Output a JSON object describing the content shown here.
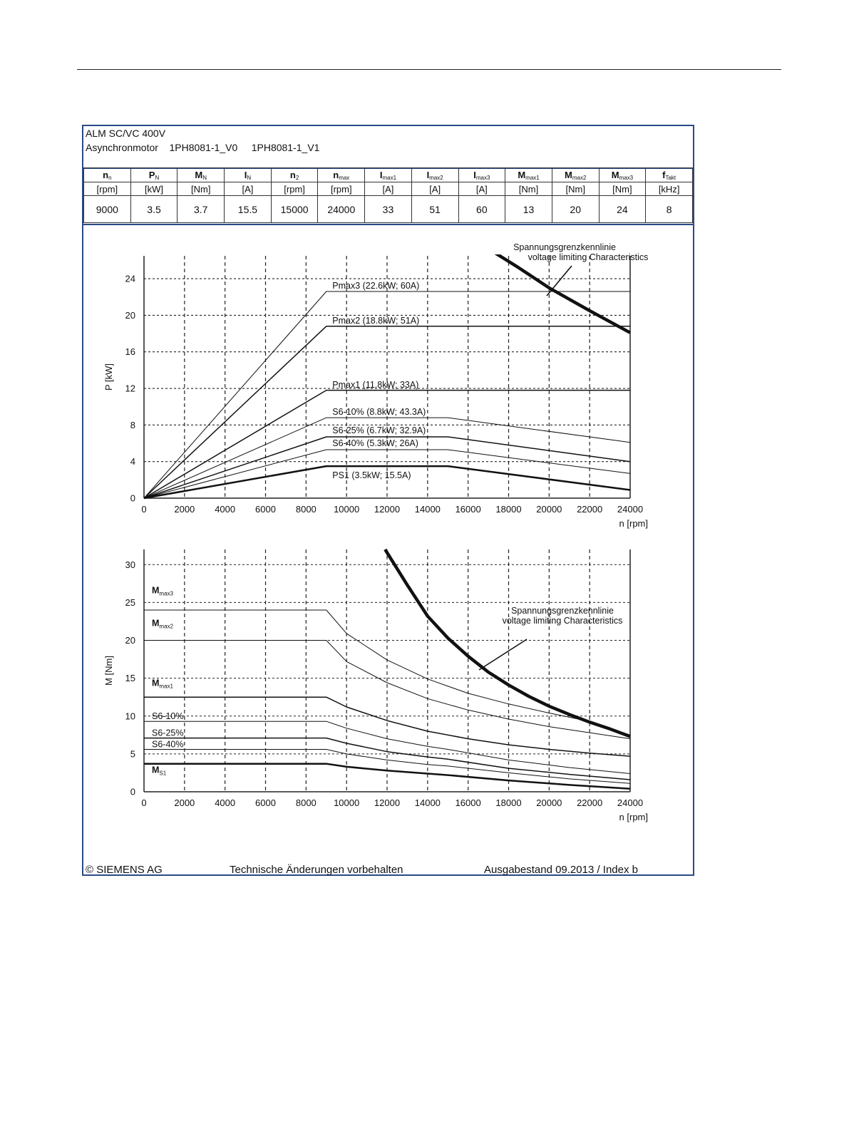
{
  "header": {
    "line1": "ALM SC/VC 400V",
    "line2_label": "Asynchronmotor",
    "line2_model1": "1PH8081-1_V0",
    "line2_model2": "1PH8081-1_V1"
  },
  "spec_table": {
    "columns": [
      {
        "sym": "n",
        "sub": "n",
        "unit": "[rpm]",
        "value": "9000"
      },
      {
        "sym": "P",
        "sub": "N",
        "unit": "[kW]",
        "value": "3.5"
      },
      {
        "sym": "M",
        "sub": "N",
        "unit": "[Nm]",
        "value": "3.7"
      },
      {
        "sym": "I",
        "sub": "N",
        "unit": "[A]",
        "value": "15.5"
      },
      {
        "sym": "n",
        "sub": "2",
        "unit": "[rpm]",
        "value": "15000"
      },
      {
        "sym": "n",
        "sub": "max",
        "unit": "[rpm]",
        "value": "24000"
      },
      {
        "sym": "I",
        "sub": "max1",
        "unit": "[A]",
        "value": "33"
      },
      {
        "sym": "I",
        "sub": "max2",
        "unit": "[A]",
        "value": "51"
      },
      {
        "sym": "I",
        "sub": "max3",
        "unit": "[A]",
        "value": "60"
      },
      {
        "sym": "M",
        "sub": "max1",
        "unit": "[Nm]",
        "value": "13"
      },
      {
        "sym": "M",
        "sub": "max2",
        "unit": "[Nm]",
        "value": "20"
      },
      {
        "sym": "M",
        "sub": "max3",
        "unit": "[Nm]",
        "value": "24"
      },
      {
        "sym": "f",
        "sub": "Takt",
        "unit": "[kHz]",
        "value": "8"
      }
    ]
  },
  "chart_data": [
    {
      "type": "line",
      "xlabel": "n [rpm]",
      "ylabel": "P [kW]",
      "xlim": [
        0,
        24000
      ],
      "ylim": [
        0,
        26.5
      ],
      "xticks": [
        0,
        2000,
        4000,
        6000,
        8000,
        10000,
        12000,
        14000,
        16000,
        18000,
        20000,
        22000,
        24000
      ],
      "yticks": [
        0,
        4,
        8,
        12,
        16,
        20,
        24
      ],
      "grid": "dashed",
      "series": [
        {
          "name": "Pmax3 (22.6kW; 60A)",
          "stroke": 1,
          "points": [
            [
              0,
              0
            ],
            [
              9000,
              22.6
            ],
            [
              24000,
              22.6
            ]
          ]
        },
        {
          "name": "Pmax2 (18.8kW; 51A)",
          "stroke": 1.5,
          "points": [
            [
              0,
              0
            ],
            [
              9000,
              18.8
            ],
            [
              24000,
              18.8
            ]
          ]
        },
        {
          "name": "Pmax1 (11.8kW; 33A)",
          "stroke": 1.5,
          "points": [
            [
              0,
              0
            ],
            [
              9000,
              11.8
            ],
            [
              24000,
              11.8
            ]
          ]
        },
        {
          "name": "S6-10% (8.8kW; 43.3A)",
          "stroke": 1,
          "points": [
            [
              0,
              0
            ],
            [
              9000,
              8.8
            ],
            [
              15000,
              8.8
            ],
            [
              24000,
              6.1
            ]
          ]
        },
        {
          "name": "S6-25% (6.7kW; 32.9A)",
          "stroke": 1.5,
          "points": [
            [
              0,
              0
            ],
            [
              9000,
              6.7
            ],
            [
              15000,
              6.7
            ],
            [
              24000,
              4.0
            ]
          ]
        },
        {
          "name": "S6-40% (5.3kW; 26A)",
          "stroke": 1,
          "points": [
            [
              0,
              0
            ],
            [
              9000,
              5.3
            ],
            [
              15000,
              5.3
            ],
            [
              24000,
              2.7
            ]
          ]
        },
        {
          "name": "PS1 (3.5kW; 15.5A)",
          "stroke": 2.5,
          "points": [
            [
              0,
              0
            ],
            [
              9000,
              3.5
            ],
            [
              15000,
              3.5
            ],
            [
              24000,
              0.9
            ]
          ]
        },
        {
          "name": "Spannungsgrenzkennlinie voltage limiting Characteristics",
          "stroke": 4.5,
          "points": [
            [
              17200,
              27
            ],
            [
              18500,
              25.2
            ],
            [
              20000,
              23.0
            ],
            [
              22000,
              20.5
            ],
            [
              24000,
              18.1
            ]
          ]
        }
      ],
      "annotations": [
        "Spannungsgrenzkennlinie",
        "voltage limiting  Characteristics"
      ]
    },
    {
      "type": "line",
      "xlabel": "n [rpm]",
      "ylabel": "M [Nm]",
      "xlim": [
        0,
        24000
      ],
      "ylim": [
        0,
        32
      ],
      "xticks": [
        0,
        2000,
        4000,
        6000,
        8000,
        10000,
        12000,
        14000,
        16000,
        18000,
        20000,
        22000,
        24000
      ],
      "yticks": [
        0,
        5,
        10,
        15,
        20,
        25,
        30
      ],
      "grid": "dashed",
      "series": [
        {
          "name": "Mmax3",
          "stroke": 1,
          "points": [
            [
              0,
              24
            ],
            [
              9000,
              24
            ],
            [
              10000,
              20.9
            ],
            [
              12000,
              17.4
            ],
            [
              14000,
              14.9
            ],
            [
              16000,
              13.0
            ],
            [
              18000,
              11.6
            ],
            [
              20000,
              10.4
            ],
            [
              22000,
              9.3
            ],
            [
              24000,
              7.5
            ]
          ]
        },
        {
          "name": "Mmax2",
          "stroke": 1,
          "points": [
            [
              0,
              20
            ],
            [
              9000,
              20
            ],
            [
              10000,
              17.2
            ],
            [
              12000,
              14.4
            ],
            [
              14000,
              12.3
            ],
            [
              16000,
              10.8
            ],
            [
              18000,
              9.6
            ],
            [
              20000,
              8.6
            ],
            [
              22000,
              7.8
            ],
            [
              24000,
              7.0
            ]
          ]
        },
        {
          "name": "Mmax1",
          "stroke": 1.5,
          "points": [
            [
              0,
              12.5
            ],
            [
              9000,
              12.5
            ],
            [
              10000,
              11.2
            ],
            [
              12000,
              9.4
            ],
            [
              14000,
              8.0
            ],
            [
              16000,
              7.0
            ],
            [
              18000,
              6.2
            ],
            [
              20000,
              5.6
            ],
            [
              22000,
              5.1
            ],
            [
              24000,
              4.7
            ]
          ]
        },
        {
          "name": "S6-10%",
          "stroke": 1,
          "points": [
            [
              0,
              9.3
            ],
            [
              9000,
              9.3
            ],
            [
              10000,
              8.4
            ],
            [
              12000,
              7.0
            ],
            [
              14000,
              6.0
            ],
            [
              15000,
              5.6
            ],
            [
              18000,
              4.2
            ],
            [
              21000,
              3.2
            ],
            [
              24000,
              2.4
            ]
          ]
        },
        {
          "name": "S6-25%",
          "stroke": 1.5,
          "points": [
            [
              0,
              7.1
            ],
            [
              9000,
              7.1
            ],
            [
              10000,
              6.4
            ],
            [
              12000,
              5.3
            ],
            [
              14000,
              4.6
            ],
            [
              15000,
              4.3
            ],
            [
              18000,
              3.1
            ],
            [
              21000,
              2.3
            ],
            [
              24000,
              1.6
            ]
          ]
        },
        {
          "name": "S6-40%",
          "stroke": 1,
          "points": [
            [
              0,
              5.6
            ],
            [
              9000,
              5.6
            ],
            [
              10000,
              5.0
            ],
            [
              12000,
              4.2
            ],
            [
              14000,
              3.6
            ],
            [
              15000,
              3.4
            ],
            [
              18000,
              2.5
            ],
            [
              21000,
              1.7
            ],
            [
              24000,
              1.1
            ]
          ]
        },
        {
          "name": "MS1",
          "stroke": 2.5,
          "points": [
            [
              0,
              3.7
            ],
            [
              9000,
              3.7
            ],
            [
              10000,
              3.3
            ],
            [
              12000,
              2.8
            ],
            [
              14000,
              2.4
            ],
            [
              15000,
              2.2
            ],
            [
              18000,
              1.5
            ],
            [
              21000,
              0.9
            ],
            [
              24000,
              0.4
            ]
          ]
        },
        {
          "name": "Spannungsgrenzkennlinie voltage limiting Characteristics",
          "stroke": 4.5,
          "points": [
            [
              11900,
              32
            ],
            [
              13000,
              27.3
            ],
            [
              14000,
              23.2
            ],
            [
              15000,
              20.3
            ],
            [
              16000,
              17.9
            ],
            [
              17000,
              15.8
            ],
            [
              18000,
              14.1
            ],
            [
              19000,
              12.6
            ],
            [
              20000,
              11.3
            ],
            [
              21000,
              10.2
            ],
            [
              22000,
              9.2
            ],
            [
              23000,
              8.3
            ],
            [
              24000,
              7.3
            ]
          ]
        }
      ],
      "labels": [
        {
          "main": "M",
          "sub": "max3",
          "y": 26.2
        },
        {
          "main": "M",
          "sub": "max2",
          "y": 21.9
        },
        {
          "main": "M",
          "sub": "max1",
          "y": 14.0
        },
        {
          "main": "S6-10%",
          "sub": "",
          "y": 9.6
        },
        {
          "main": "S6-25%",
          "sub": "",
          "y": 7.4
        },
        {
          "main": "S6-40%",
          "sub": "",
          "y": 5.9
        },
        {
          "main": "M",
          "sub": "S1",
          "y": 2.5
        }
      ],
      "annotations": [
        "Spannungsgrenzkennlinie",
        "voltage limiting  Characteristics"
      ]
    }
  ],
  "footer": {
    "copyright": "© SIEMENS AG",
    "notice": "Technische Änderungen vorbehalten",
    "edition": "Ausgabestand 09.2013 / Index b"
  }
}
